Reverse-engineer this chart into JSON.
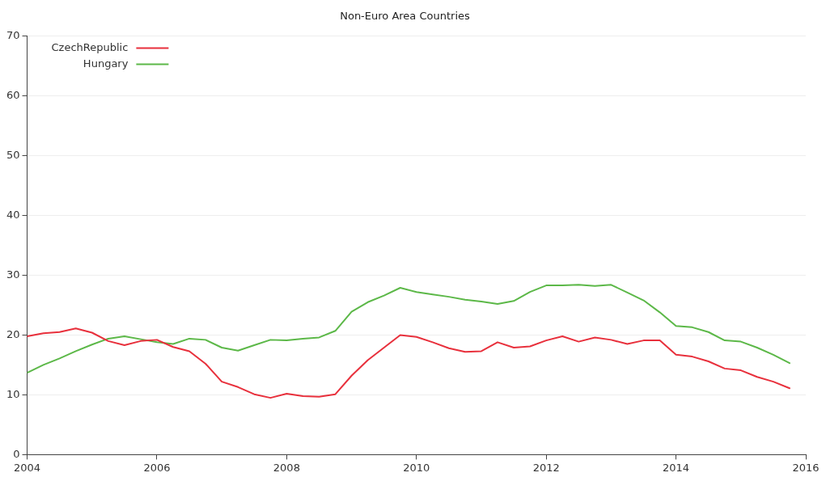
{
  "chart_data": {
    "type": "line",
    "title": "Non-Euro Area Countries",
    "x": [
      2004,
      2004.25,
      2004.5,
      2004.75,
      2005,
      2005.25,
      2005.5,
      2005.75,
      2006,
      2006.25,
      2006.5,
      2006.75,
      2007,
      2007.25,
      2007.5,
      2007.75,
      2008,
      2008.25,
      2008.5,
      2008.75,
      2009,
      2009.25,
      2009.5,
      2009.75,
      2010,
      2010.25,
      2010.5,
      2010.75,
      2011,
      2011.25,
      2011.5,
      2011.75,
      2012,
      2012.25,
      2012.5,
      2012.75,
      2013,
      2013.25,
      2013.5,
      2013.75,
      2014,
      2014.25,
      2014.5,
      2014.75,
      2015,
      2015.25,
      2015.5,
      2015.75
    ],
    "series": [
      {
        "name": "CzechRepublic",
        "color": "#e8303c",
        "values": [
          19.8,
          20.3,
          20.5,
          21.1,
          20.4,
          19.0,
          18.3,
          19.0,
          19.2,
          18.0,
          17.3,
          15.2,
          12.2,
          11.3,
          10.1,
          9.5,
          10.2,
          9.8,
          9.7,
          10.1,
          13.2,
          15.8,
          17.9,
          20.0,
          19.7,
          18.8,
          17.8,
          17.2,
          17.3,
          18.8,
          17.9,
          18.1,
          19.1,
          19.8,
          18.9,
          19.6,
          19.2,
          18.5,
          19.1,
          19.1,
          16.7,
          16.4,
          15.6,
          14.4,
          14.1,
          13.0,
          12.2,
          11.1
        ]
      },
      {
        "name": "Hungary",
        "color": "#5cb848",
        "values": [
          13.7,
          15.0,
          16.1,
          17.3,
          18.4,
          19.4,
          19.8,
          19.3,
          18.8,
          18.5,
          19.4,
          19.2,
          17.9,
          17.4,
          18.3,
          19.2,
          19.1,
          19.4,
          19.6,
          20.7,
          23.9,
          25.5,
          26.6,
          27.9,
          27.2,
          26.8,
          26.4,
          25.9,
          25.6,
          25.2,
          25.7,
          27.2,
          28.3,
          28.3,
          28.4,
          28.2,
          28.4,
          27.1,
          25.8,
          23.8,
          21.5,
          21.3,
          20.5,
          19.1,
          18.9,
          17.9,
          16.7,
          15.3
        ]
      }
    ],
    "xlim": [
      2004,
      2016
    ],
    "xticks": [
      2004,
      2006,
      2008,
      2010,
      2012,
      2014,
      2016
    ],
    "ylim": [
      0,
      70
    ],
    "yticks": [
      0,
      10,
      20,
      30,
      40,
      50,
      60,
      70
    ],
    "grid": "y",
    "legend": "top left",
    "marker": "none",
    "line_style": "solid"
  }
}
